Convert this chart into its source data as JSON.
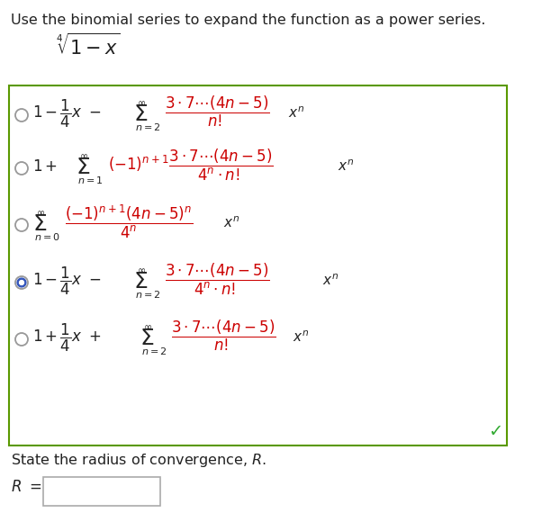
{
  "title": "Use the binomial series to expand the function as a power series.",
  "bg_color": "#ffffff",
  "box_edge_color": "#5a9900",
  "black": "#222222",
  "red": "#cc0000",
  "gray": "#999999",
  "green": "#33aa33",
  "blue_fill": "#3355bb",
  "fig_w": 5.92,
  "fig_h": 5.9,
  "dpi": 100
}
